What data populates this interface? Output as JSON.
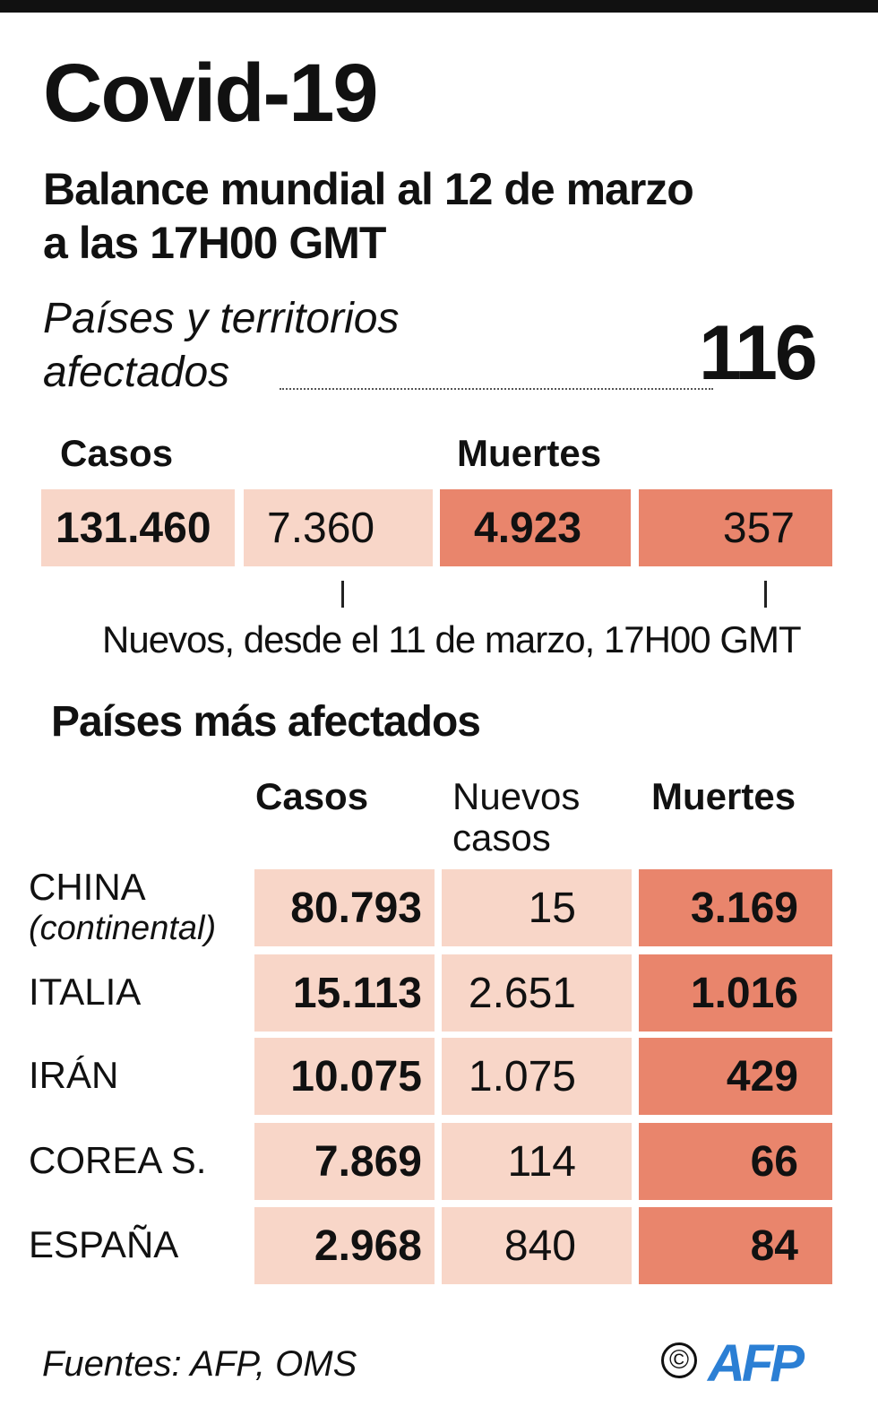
{
  "title": "Covid-19",
  "subtitle_line1": "Balance mundial al 12 de marzo",
  "subtitle_line2": "a las 17H00 GMT",
  "affected": {
    "label_line1": "Países y territorios",
    "label_line2": "afectados",
    "value": "116"
  },
  "totals": {
    "cases_label": "Casos",
    "deaths_label": "Muertes",
    "cases": "131.460",
    "new_cases": "7.360",
    "deaths": "4.923",
    "new_deaths": "357",
    "note": "Nuevos, desde el 11 de marzo, 17H00 GMT"
  },
  "table": {
    "title": "Países más afectados",
    "headers": {
      "cases": "Casos",
      "new_line1": "Nuevos",
      "new_line2": "casos",
      "deaths": "Muertes"
    },
    "rows": [
      {
        "country": "CHINA",
        "note": "(continental)",
        "cases": "80.793",
        "new": "15",
        "deaths": "3.169"
      },
      {
        "country": "ITALIA",
        "cases": "15.113",
        "new": "2.651",
        "deaths": "1.016"
      },
      {
        "country": "IRÁN",
        "cases": "10.075",
        "new": "1.075",
        "deaths": "429"
      },
      {
        "country": "COREA S.",
        "cases": "7.869",
        "new": "114",
        "deaths": "66"
      },
      {
        "country": "ESPAÑA",
        "cases": "2.968",
        "new": "840",
        "deaths": "84"
      }
    ]
  },
  "footer": {
    "sources": "Fuentes: AFP, OMS",
    "copyright": "©",
    "logo": "AFP"
  },
  "colors": {
    "light": "#f8d6c8",
    "dark": "#e9856c",
    "logo": "#2b7fd4"
  }
}
